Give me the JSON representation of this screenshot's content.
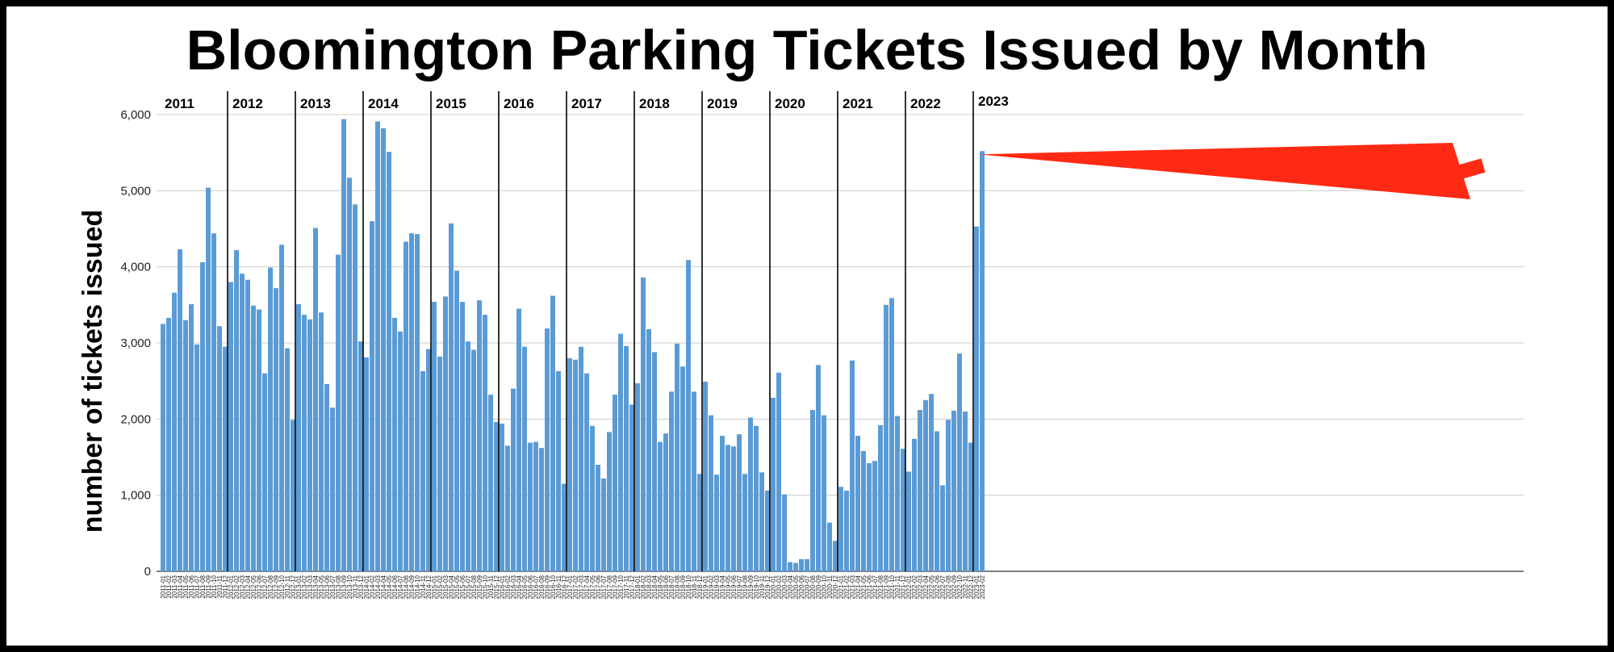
{
  "chart_data": {
    "type": "bar",
    "title": "Bloomington Parking Tickets Issued by Month",
    "xlabel": "",
    "ylabel": "number of tickets issued",
    "ylim": [
      0,
      6000
    ],
    "yticks": [
      0,
      1000,
      2000,
      3000,
      4000,
      5000,
      6000
    ],
    "ytick_labels": [
      "0",
      "1,000",
      "2,000",
      "3,000",
      "4,000",
      "5,000",
      "6,000"
    ],
    "grid": true,
    "bar_color": "#5b9bd5",
    "year_labels": [
      "2011",
      "2012",
      "2013",
      "2014",
      "2015",
      "2016",
      "2017",
      "2018",
      "2019",
      "2020",
      "2021",
      "2022",
      "2023"
    ],
    "annotation": "red arrow pointing to the 2023-02 bar",
    "annotation_color": "#ff2a14",
    "categories": [
      "2011-01",
      "2011-02",
      "2011-03",
      "2011-04",
      "2011-05",
      "2011-06",
      "2011-07",
      "2011-08",
      "2011-09",
      "2011-10",
      "2011-11",
      "2011-12",
      "2012-01",
      "2012-02",
      "2012-03",
      "2012-04",
      "2012-05",
      "2012-06",
      "2012-07",
      "2012-08",
      "2012-09",
      "2012-10",
      "2012-11",
      "2012-12",
      "2013-01",
      "2013-02",
      "2013-03",
      "2013-04",
      "2013-05",
      "2013-06",
      "2013-07",
      "2013-08",
      "2013-09",
      "2013-10",
      "2013-11",
      "2013-12",
      "2014-01",
      "2014-02",
      "2014-03",
      "2014-04",
      "2014-05",
      "2014-06",
      "2014-07",
      "2014-08",
      "2014-09",
      "2014-10",
      "2014-11",
      "2014-12",
      "2015-01",
      "2015-02",
      "2015-03",
      "2015-04",
      "2015-05",
      "2015-06",
      "2015-07",
      "2015-08",
      "2015-09",
      "2015-10",
      "2015-11",
      "2015-12",
      "2016-01",
      "2016-02",
      "2016-03",
      "2016-04",
      "2016-05",
      "2016-06",
      "2016-07",
      "2016-08",
      "2016-09",
      "2016-10",
      "2016-11",
      "2016-12",
      "2017-01",
      "2017-02",
      "2017-03",
      "2017-04",
      "2017-05",
      "2017-06",
      "2017-07",
      "2017-08",
      "2017-09",
      "2017-10",
      "2017-11",
      "2017-12",
      "2018-01",
      "2018-02",
      "2018-03",
      "2018-04",
      "2018-05",
      "2018-06",
      "2018-07",
      "2018-08",
      "2018-09",
      "2018-10",
      "2018-11",
      "2018-12",
      "2019-01",
      "2019-02",
      "2019-03",
      "2019-04",
      "2019-05",
      "2019-06",
      "2019-07",
      "2019-08",
      "2019-09",
      "2019-10",
      "2019-11",
      "2019-12",
      "2020-01",
      "2020-02",
      "2020-03",
      "2020-04",
      "2020-05",
      "2020-06",
      "2020-07",
      "2020-08",
      "2020-09",
      "2020-10",
      "2020-11",
      "2020-12",
      "2021-01",
      "2021-02",
      "2021-03",
      "2021-04",
      "2021-05",
      "2021-06",
      "2021-07",
      "2021-08",
      "2021-09",
      "2021-10",
      "2021-11",
      "2021-12",
      "2022-01",
      "2022-02",
      "2022-03",
      "2022-04",
      "2022-05",
      "2022-06",
      "2022-07",
      "2022-08",
      "2022-09",
      "2022-10",
      "2022-11",
      "2022-12",
      "2023-01",
      "2023-02"
    ],
    "values": [
      3250,
      3330,
      3660,
      4230,
      3300,
      3510,
      2980,
      4060,
      5040,
      4440,
      3220,
      2950,
      3800,
      4220,
      3910,
      3830,
      3490,
      3440,
      2600,
      3990,
      3720,
      4290,
      2930,
      1990,
      3510,
      3370,
      3310,
      4510,
      3400,
      2460,
      2150,
      4160,
      5940,
      5170,
      4820,
      3020,
      2810,
      4600,
      5910,
      5820,
      5510,
      3330,
      3150,
      4330,
      4440,
      4430,
      2630,
      2920,
      3540,
      2820,
      3610,
      4570,
      3950,
      3540,
      3020,
      2910,
      3560,
      3370,
      2320,
      1960,
      1940,
      1650,
      2400,
      3450,
      2950,
      1690,
      1700,
      1620,
      3190,
      3620,
      2630,
      1150,
      2800,
      2780,
      2950,
      2600,
      1910,
      1400,
      1220,
      1830,
      2320,
      3120,
      2960,
      2190,
      2470,
      3860,
      3180,
      2880,
      1700,
      1810,
      2360,
      2990,
      2690,
      4090,
      2360,
      1280,
      2490,
      2050,
      1270,
      1780,
      1660,
      1640,
      1800,
      1280,
      2020,
      1910,
      1300,
      1060,
      2280,
      2610,
      1010,
      120,
      110,
      160,
      160,
      2120,
      2710,
      2050,
      640,
      400,
      1110,
      1060,
      2770,
      1780,
      1580,
      1420,
      1450,
      1920,
      3500,
      3590,
      2040,
      1610,
      1310,
      1740,
      2120,
      2250,
      2330,
      1840,
      1130,
      1990,
      2110,
      2860,
      2100,
      1690,
      4530,
      5520
    ]
  }
}
